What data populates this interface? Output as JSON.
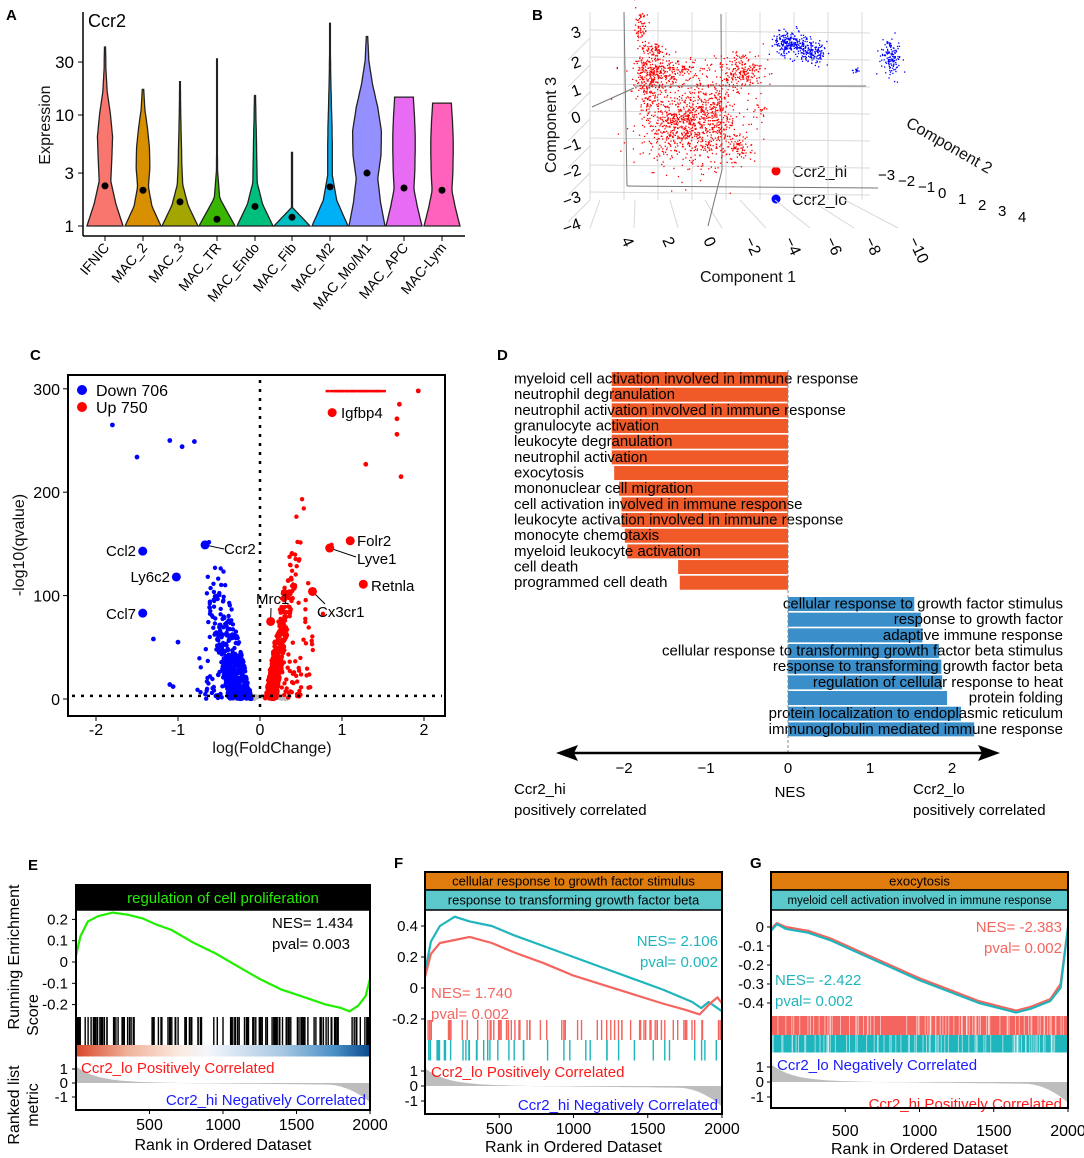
{
  "panel_labels": {
    "A": "A",
    "B": "B",
    "C": "C",
    "D": "D",
    "E": "E",
    "F": "F",
    "G": "G"
  },
  "chart_data": [
    {
      "id": "A",
      "type": "violin",
      "title": "Ccr2",
      "ylabel": "Expression",
      "yscale": "log",
      "yticks": [
        "1",
        "3",
        "10",
        "30"
      ],
      "ytick_values": [
        1,
        3,
        10,
        30
      ],
      "groups": [
        {
          "name": "IFNIC",
          "color": "#F8766D",
          "max": 41,
          "median": 2.3,
          "density": [
            1,
            0.6,
            0.32,
            0.38,
            0.42,
            0.3,
            0.12,
            0.05,
            0.03
          ]
        },
        {
          "name": "MAC_2",
          "color": "#D89000",
          "max": 17,
          "median": 2.1,
          "density": [
            1,
            0.5,
            0.3,
            0.38,
            0.36,
            0.25,
            0.1,
            0.04
          ]
        },
        {
          "name": "MAC_3",
          "color": "#A3A500",
          "max": 20,
          "median": 1.65,
          "density": [
            1,
            0.45,
            0.15,
            0.1,
            0.08,
            0.05,
            0.03,
            0.02
          ]
        },
        {
          "name": "MAC_TR",
          "color": "#39B600",
          "max": 32,
          "median": 1.15,
          "density": [
            1,
            0.15,
            0.03,
            0.02,
            0.02,
            0.02,
            0.02
          ]
        },
        {
          "name": "MAC_Endo",
          "color": "#00BF7D",
          "max": 15,
          "median": 1.5,
          "density": [
            1,
            0.42,
            0.12,
            0.1,
            0.08,
            0.05,
            0.03
          ]
        },
        {
          "name": "MAC_Fib",
          "color": "#00BFC4",
          "max": 4.6,
          "median": 1.2,
          "density": [
            1,
            0.03,
            0.03,
            0.03,
            0.03
          ]
        },
        {
          "name": "MAC_M2",
          "color": "#00B0F6",
          "max": 67,
          "median": 2.25,
          "density": [
            1,
            0.38,
            0.13,
            0.13,
            0.11,
            0.07,
            0.04,
            0.02,
            0.02
          ]
        },
        {
          "name": "MAC_Mo/M1",
          "color": "#9590FF",
          "max": 51,
          "median": 3.0,
          "density": [
            1,
            0.75,
            0.6,
            0.78,
            0.8,
            0.6,
            0.3,
            0.1,
            0.04
          ]
        },
        {
          "name": "MAC_APC",
          "color": "#E76BF3",
          "max": 14.5,
          "median": 2.2,
          "density": [
            1,
            0.75,
            0.55,
            0.6,
            0.62,
            0.62,
            0.58,
            0.52
          ]
        },
        {
          "name": "MAC-Lym",
          "color": "#FF62BC",
          "max": 12.8,
          "median": 2.1,
          "density": [
            1,
            0.75,
            0.55,
            0.6,
            0.62,
            0.62,
            0.58,
            0.52
          ]
        }
      ]
    },
    {
      "id": "B",
      "type": "scatter3d",
      "xlabel": "Component 1",
      "ylabel": "Component 2",
      "zlabel": "Component 3",
      "x_ticks": [
        "4",
        "2",
        "0",
        "−2",
        "−4",
        "−6",
        "−8",
        "−10"
      ],
      "y_ticks": [
        "−3",
        "−2",
        "−1",
        "0",
        "1",
        "2",
        "3",
        "4"
      ],
      "z_ticks": [
        "3",
        "2",
        "1",
        "0",
        "−1",
        "−2",
        "−3",
        "−4"
      ],
      "legend": [
        {
          "name": "Ccr2_hi",
          "color": "#FF0000"
        },
        {
          "name": "Ccr2_lo",
          "color": "#0000FF"
        }
      ],
      "legend_position": "bottom-right"
    },
    {
      "id": "C",
      "type": "scatter",
      "xlabel": "log(FoldChange)",
      "ylabel": "-log10(qvalue)",
      "xlim": [
        -2.3,
        2.2
      ],
      "ylim": [
        -15,
        315
      ],
      "xticks": [
        "-2",
        "-1",
        "0",
        "1",
        "2"
      ],
      "xtick_values": [
        -2,
        -1,
        0,
        1,
        2
      ],
      "yticks": [
        "0",
        "100",
        "200",
        "300"
      ],
      "ytick_values": [
        0,
        100,
        200,
        300
      ],
      "legend": [
        {
          "label": "Down 706",
          "color": "#0000FF"
        },
        {
          "label": "Up 750",
          "color": "#FF0000"
        }
      ],
      "legend_position": "top-left",
      "thresholds": {
        "x": 0,
        "y": 3
      },
      "labeled_genes": [
        {
          "gene": "Ccl2",
          "x": -1.43,
          "y": 143,
          "group": "down"
        },
        {
          "gene": "Ly6c2",
          "x": -1.02,
          "y": 118,
          "group": "down"
        },
        {
          "gene": "Ccl7",
          "x": -1.43,
          "y": 83,
          "group": "down"
        },
        {
          "gene": "Ccr2",
          "x": -0.67,
          "y": 149,
          "group": "down"
        },
        {
          "gene": "Mrc1",
          "x": 0.13,
          "y": 75,
          "group": "up"
        },
        {
          "gene": "Cx3cr1",
          "x": 0.64,
          "y": 104,
          "group": "up"
        },
        {
          "gene": "Igfbp4",
          "x": 0.88,
          "y": 277,
          "group": "up"
        },
        {
          "gene": "Folr2",
          "x": 1.1,
          "y": 153,
          "group": "up"
        },
        {
          "gene": "Lyve1",
          "x": 0.85,
          "y": 146,
          "group": "up"
        },
        {
          "gene": "Retnla",
          "x": 1.26,
          "y": 111,
          "group": "up"
        }
      ]
    },
    {
      "id": "D",
      "type": "bar",
      "orientation": "horizontal",
      "xlabel": "NES",
      "xticks": [
        "−2",
        "−1",
        "0",
        "1",
        "2"
      ],
      "xtick_values": [
        -2,
        -1,
        0,
        1,
        2
      ],
      "left_caption": [
        "Ccr2_hi",
        "positively correlated"
      ],
      "right_caption": [
        "Ccr2_lo",
        "positively correlated"
      ],
      "colors": {
        "negative": "#F05A28",
        "positive": "#3A8FCB"
      },
      "categories": [
        "myeloid cell activation involved in immune response",
        "neutrophil degranulation",
        "neutrophil activation involved in immune response",
        "granulocyte activation",
        "leukocyte degranulation",
        "neutrophil activation",
        "exocytosis",
        "mononuclear cell migration",
        "cell activation involved in immune response",
        "leukocyte activation involved in immune response",
        "monocyte chemotaxis",
        "myeloid leukocyte activation",
        "cell death",
        "programmed cell death",
        "cellular response to growth factor stimulus",
        "response to growth factor",
        "adaptive immune response",
        "cellular response to transforming growth factor beta stimulus",
        "response to transforming growth factor beta",
        "regulation of cellular response to heat",
        "protein folding",
        "protein localization to endoplasmic reticulum",
        "immunoglobulin mediated immune response"
      ],
      "values": [
        -2.15,
        -2.15,
        -2.15,
        -2.15,
        -2.15,
        -2.15,
        -2.12,
        -2.06,
        -2.03,
        -2.03,
        -1.99,
        -1.96,
        -1.34,
        -1.32,
        1.54,
        1.62,
        1.64,
        1.84,
        1.87,
        1.88,
        1.94,
        2.11,
        2.27
      ]
    },
    {
      "id": "E",
      "type": "line",
      "title": "regulation of cell proliferation",
      "ylabel": [
        "Running Enrichment",
        "Score"
      ],
      "ylabel2": [
        "Ranked list",
        "metric"
      ],
      "xlabel": "Rank in Ordered Dataset",
      "xticks": [
        "500",
        "1000",
        "1500",
        "2000"
      ],
      "yticks": [
        "0.2",
        "0.1",
        "0",
        "-0.1",
        "-0.2"
      ],
      "ytick_values": [
        0.2,
        0.1,
        0,
        -0.1,
        -0.2
      ],
      "metric_ticks": [
        "1",
        "0",
        "-1"
      ],
      "top_label": "Ccr2_lo Positively Correlated",
      "bottom_label": "Ccr2_hi Negatively Correlated",
      "series": [
        {
          "name": "regulation of cell proliferation",
          "color": "#22EE00",
          "nes": "NES= 1.434",
          "pval": "pval= 0.003",
          "points": [
            [
              0,
              0.03
            ],
            [
              30,
              0.12
            ],
            [
              80,
              0.19
            ],
            [
              150,
              0.215
            ],
            [
              250,
              0.232
            ],
            [
              350,
              0.222
            ],
            [
              450,
              0.205
            ],
            [
              550,
              0.175
            ],
            [
              650,
              0.15
            ],
            [
              800,
              0.09
            ],
            [
              950,
              0.04
            ],
            [
              1100,
              -0.02
            ],
            [
              1250,
              -0.08
            ],
            [
              1400,
              -0.13
            ],
            [
              1550,
              -0.165
            ],
            [
              1700,
              -0.2
            ],
            [
              1800,
              -0.215
            ],
            [
              1860,
              -0.232
            ],
            [
              1920,
              -0.205
            ],
            [
              1970,
              -0.16
            ],
            [
              2000,
              -0.08
            ]
          ]
        }
      ]
    },
    {
      "id": "F",
      "type": "line",
      "titles": [
        "cellular response to growth factor stimulus",
        "response to transforming growth factor beta"
      ],
      "xlabel": "Rank in Ordered Dataset",
      "xticks": [
        "500",
        "1000",
        "1500",
        "2000"
      ],
      "yticks": [
        "0.4",
        "0.2",
        "0",
        "-0.2"
      ],
      "ytick_values": [
        0.4,
        0.2,
        0,
        -0.2
      ],
      "metric_ticks": [
        "1",
        "0",
        "-1"
      ],
      "top_label": "Ccr2_lo Positively Correlated",
      "bottom_label": "Ccr2_hi Negatively Correlated",
      "series": [
        {
          "name": "response to transforming growth factor beta",
          "color": "#1FB5BC",
          "nes": "NES= 2.106",
          "pval": "pval= 0.002",
          "points": [
            [
              0,
              0.1
            ],
            [
              40,
              0.3
            ],
            [
              100,
              0.4
            ],
            [
              200,
              0.46
            ],
            [
              300,
              0.43
            ],
            [
              450,
              0.4
            ],
            [
              600,
              0.34
            ],
            [
              800,
              0.27
            ],
            [
              1000,
              0.2
            ],
            [
              1200,
              0.13
            ],
            [
              1400,
              0.06
            ],
            [
              1600,
              -0.01
            ],
            [
              1800,
              -0.09
            ],
            [
              1860,
              -0.13
            ],
            [
              1910,
              -0.09
            ],
            [
              2000,
              -0.15
            ]
          ]
        },
        {
          "name": "cellular response to growth factor stimulus",
          "color": "#F4655F",
          "nes": "NES= 1.740",
          "pval": "pval= 0.002",
          "points": [
            [
              0,
              0.07
            ],
            [
              40,
              0.22
            ],
            [
              100,
              0.29
            ],
            [
              200,
              0.31
            ],
            [
              300,
              0.33
            ],
            [
              450,
              0.29
            ],
            [
              600,
              0.23
            ],
            [
              800,
              0.16
            ],
            [
              1000,
              0.08
            ],
            [
              1200,
              0.02
            ],
            [
              1400,
              -0.04
            ],
            [
              1600,
              -0.1
            ],
            [
              1750,
              -0.14
            ],
            [
              1850,
              -0.17
            ],
            [
              1920,
              -0.1
            ],
            [
              1970,
              -0.06
            ],
            [
              2000,
              -0.1
            ]
          ]
        }
      ]
    },
    {
      "id": "G",
      "type": "line",
      "titles": [
        "exocytosis",
        "myeloid cell activation involved in immune response"
      ],
      "xlabel": "Rank in Ordered Dataset",
      "xticks": [
        "500",
        "1000",
        "1500",
        "2000"
      ],
      "yticks": [
        "0",
        "-0.1",
        "-0.2",
        "-0.3",
        "-0.4"
      ],
      "ytick_values": [
        0,
        -0.1,
        -0.2,
        -0.3,
        -0.4
      ],
      "metric_ticks": [
        "1",
        "0",
        "-1"
      ],
      "top_label": "Ccr2_lo Negatively Correlated",
      "bottom_label": "Ccr2_hi Positively Correlated",
      "series": [
        {
          "name": "exocytosis",
          "color": "#F4655F",
          "nes": "NES= -2.383",
          "pval": "pval= 0.002",
          "points": [
            [
              0,
              -0.01
            ],
            [
              40,
              0.02
            ],
            [
              100,
              0.0
            ],
            [
              250,
              -0.02
            ],
            [
              400,
              -0.06
            ],
            [
              600,
              -0.13
            ],
            [
              800,
              -0.2
            ],
            [
              1000,
              -0.27
            ],
            [
              1200,
              -0.33
            ],
            [
              1400,
              -0.39
            ],
            [
              1550,
              -0.42
            ],
            [
              1650,
              -0.44
            ],
            [
              1750,
              -0.42
            ],
            [
              1880,
              -0.38
            ],
            [
              1950,
              -0.3
            ],
            [
              2000,
              0.0
            ]
          ]
        },
        {
          "name": "myeloid cell activation involved in immune response",
          "color": "#1FB5BC",
          "nes": "NES= -2.422",
          "pval": "pval= 0.002",
          "points": [
            [
              0,
              -0.02
            ],
            [
              40,
              0.015
            ],
            [
              100,
              -0.01
            ],
            [
              250,
              -0.03
            ],
            [
              400,
              -0.07
            ],
            [
              600,
              -0.14
            ],
            [
              800,
              -0.21
            ],
            [
              1000,
              -0.28
            ],
            [
              1200,
              -0.34
            ],
            [
              1400,
              -0.4
            ],
            [
              1550,
              -0.43
            ],
            [
              1650,
              -0.45
            ],
            [
              1750,
              -0.43
            ],
            [
              1880,
              -0.39
            ],
            [
              1950,
              -0.32
            ],
            [
              2000,
              0.0
            ]
          ]
        }
      ]
    }
  ]
}
